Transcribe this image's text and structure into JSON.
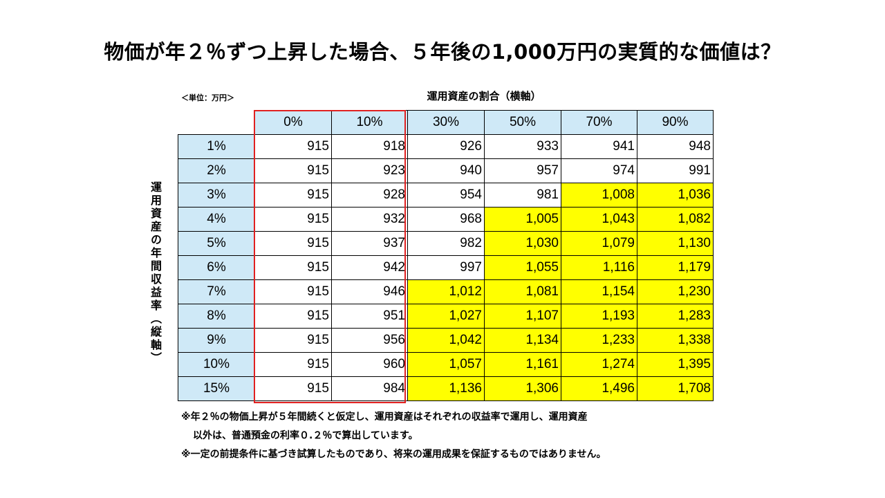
{
  "title": "物価が年２％ずつ上昇した場合、５年後の1,000万円の実質的な価値は？",
  "unit_label": "＜単位：万円＞",
  "x_axis_label": "運用資産の割合（横軸）",
  "y_axis_label": "運用資産の年間収益率（縦軸）",
  "columns": [
    "0%",
    "10%",
    "30%",
    "50%",
    "70%",
    "90%"
  ],
  "rows": [
    {
      "label": "1%",
      "values": [
        "915",
        "918",
        "926",
        "933",
        "941",
        "948"
      ]
    },
    {
      "label": "2%",
      "values": [
        "915",
        "923",
        "940",
        "957",
        "974",
        "991"
      ]
    },
    {
      "label": "3%",
      "values": [
        "915",
        "928",
        "954",
        "981",
        "1,008",
        "1,036"
      ]
    },
    {
      "label": "4%",
      "values": [
        "915",
        "932",
        "968",
        "1,005",
        "1,043",
        "1,082"
      ]
    },
    {
      "label": "5%",
      "values": [
        "915",
        "937",
        "982",
        "1,030",
        "1,079",
        "1,130"
      ]
    },
    {
      "label": "6%",
      "values": [
        "915",
        "942",
        "997",
        "1,055",
        "1,116",
        "1,179"
      ]
    },
    {
      "label": "7%",
      "values": [
        "915",
        "946",
        "1,012",
        "1,081",
        "1,154",
        "1,230"
      ]
    },
    {
      "label": "8%",
      "values": [
        "915",
        "951",
        "1,027",
        "1,107",
        "1,193",
        "1,283"
      ]
    },
    {
      "label": "9%",
      "values": [
        "915",
        "956",
        "1,042",
        "1,134",
        "1,233",
        "1,338"
      ]
    },
    {
      "label": "10%",
      "values": [
        "915",
        "960",
        "1,057",
        "1,161",
        "1,274",
        "1,395"
      ]
    },
    {
      "label": "15%",
      "values": [
        "915",
        "984",
        "1,136",
        "1,306",
        "1,496",
        "1,708"
      ]
    }
  ],
  "notes": {
    "line1": "※年２％の物価上昇が５年間続くと仮定し、運用資産はそれぞれの収益率で運用し、運用資産",
    "line2": "以外は、普通預金の利率０.２％で算出しています。",
    "line3": "※一定の前提条件に基づき試算したものであり、将来の運用成果を保証するものではありません。"
  },
  "colors": {
    "header_fill": "#cfe9f7",
    "highlight_fill": "#ffff00",
    "box_outline": "#e02020"
  }
}
